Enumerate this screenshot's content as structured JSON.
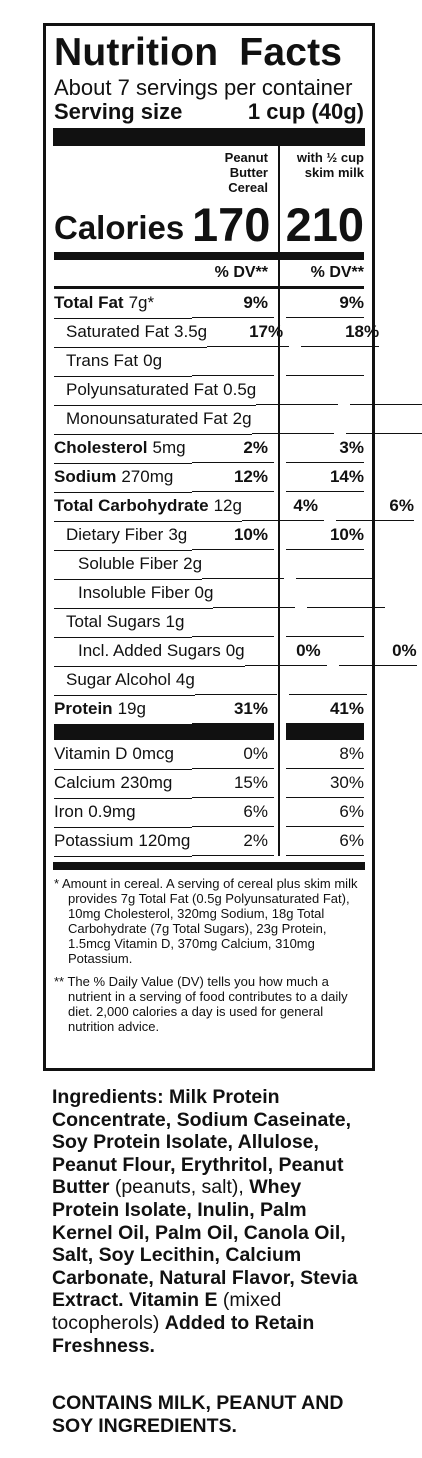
{
  "title": "Nutrition Facts",
  "servings": "About 7 servings per container",
  "serving_size": {
    "label": "Serving size",
    "value": "1 cup (40g)"
  },
  "columns": {
    "a": "Peanut Butter Cereal",
    "b": "with ½ cup skim milk"
  },
  "calories": {
    "label": "Calories",
    "a": "170",
    "b": "210"
  },
  "dv_header": "% DV**",
  "nutrients": [
    {
      "name": "Total Fat",
      "amount": "7g*",
      "a": "9%",
      "b": "9%"
    },
    {
      "name": "Saturated Fat",
      "amount": "3.5g",
      "a": "17%",
      "b": "18%"
    },
    {
      "name": "Trans Fat",
      "amount": "0g",
      "a": "",
      "b": ""
    },
    {
      "name": "Polyunsaturated Fat",
      "amount": "0.5g",
      "a": "",
      "b": ""
    },
    {
      "name": "Monounsaturated Fat",
      "amount": "2g",
      "a": "",
      "b": ""
    },
    {
      "name": "Cholesterol",
      "amount": "5mg",
      "a": "2%",
      "b": "3%"
    },
    {
      "name": "Sodium",
      "amount": "270mg",
      "a": "12%",
      "b": "14%"
    },
    {
      "name": "Total Carbohydrate",
      "amount": "12g",
      "a": "4%",
      "b": "6%"
    },
    {
      "name": "Dietary Fiber",
      "amount": "3g",
      "a": "10%",
      "b": "10%"
    },
    {
      "name": "Soluble Fiber",
      "amount": "2g",
      "a": "",
      "b": ""
    },
    {
      "name": "Insoluble Fiber",
      "amount": "0g",
      "a": "",
      "b": ""
    },
    {
      "name": "Total Sugars",
      "amount": "1g",
      "a": "",
      "b": ""
    },
    {
      "name": "Incl. Added Sugars",
      "amount": "0g",
      "a": "0%",
      "b": "0%"
    },
    {
      "name": "Sugar Alcohol",
      "amount": "4g",
      "a": "",
      "b": ""
    },
    {
      "name": "Protein",
      "amount": "19g",
      "a": "31%",
      "b": "41%"
    }
  ],
  "vitamins": [
    {
      "name": "Vitamin D",
      "amount": "0mcg",
      "a": "0%",
      "b": "8%"
    },
    {
      "name": "Calcium",
      "amount": "230mg",
      "a": "15%",
      "b": "30%"
    },
    {
      "name": "Iron",
      "amount": "0.9mg",
      "a": "6%",
      "b": "6%"
    },
    {
      "name": "Potassium",
      "amount": "120mg",
      "a": "2%",
      "b": "6%"
    }
  ],
  "footnotes": [
    "* Amount in cereal. A serving of cereal plus skim milk provides 7g Total Fat (0.5g Polyunsaturated Fat), 10mg Cholesterol, 320mg Sodium, 18g Total Carbohydrate (7g Total Sugars), 23g Protein, 1.5mcg Vitamin D, 370mg Calcium, 310mg Potassium.",
    "** The % Daily Value (DV) tells you how much a nutrient in a serving of food contributes to a daily diet. 2,000 calories a day is used for general nutrition advice."
  ],
  "ingredients": {
    "p1": "Ingredients: Milk Protein Concentrate, Sodium Caseinate, Soy Protein Isolate, Allulose, Peanut Flour, Erythritol, Peanut Butter",
    "p2": " (peanuts, salt), ",
    "p3": "Whey Protein Isolate, Inulin, Palm Kernel Oil, Palm Oil, Canola Oil, Salt, Soy Lecithin, Calcium Carbonate, Natural Flavor, Stevia Extract. Vitamin E",
    "p4": " (mixed tocopherols) ",
    "p5": "Added to Retain Freshness."
  },
  "allergens": "CONTAINS MILK, PEANUT AND SOY INGREDIENTS."
}
